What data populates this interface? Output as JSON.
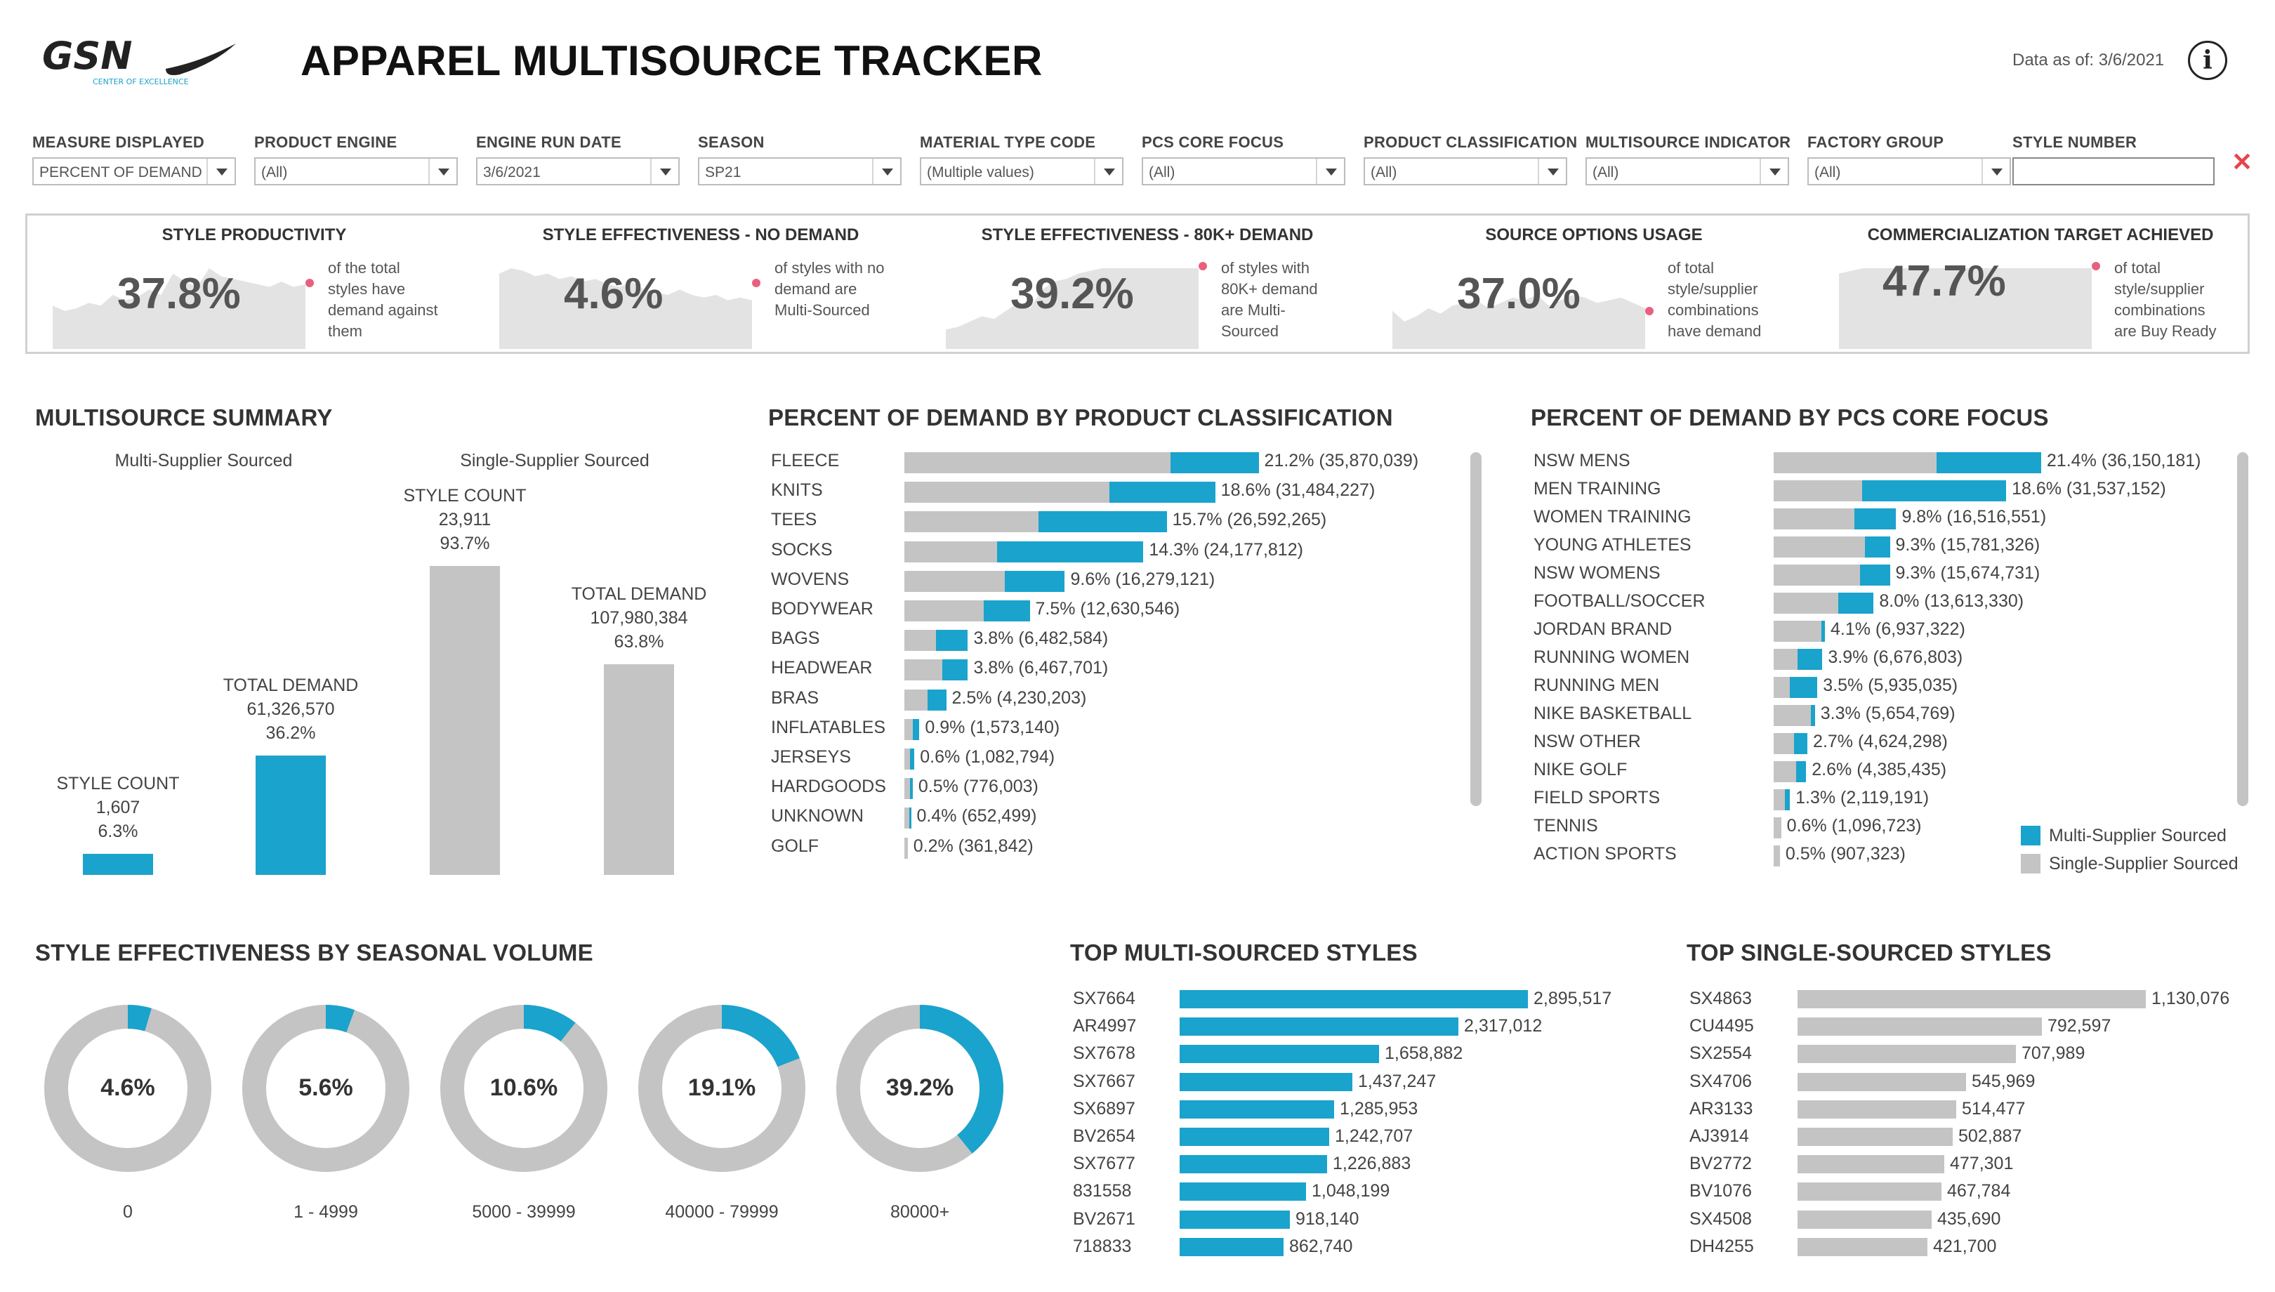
{
  "header": {
    "title": "APPAREL MULTISOURCE TRACKER",
    "logo_text": "GSN",
    "logo_subtext": "CENTER OF EXCELLENCE",
    "as_of": "Data as of: 3/6/2021"
  },
  "colors": {
    "multi": "#1aa3cc",
    "single": "#c4c4c4",
    "spark_dot": "#e9607f",
    "spark_fill": "#e3e3e3"
  },
  "filters": [
    {
      "label": "MEASURE DISPLAYED",
      "value": "PERCENT OF DEMAND"
    },
    {
      "label": "PRODUCT ENGINE",
      "value": "(All)"
    },
    {
      "label": "ENGINE RUN DATE",
      "value": "3/6/2021"
    },
    {
      "label": "SEASON",
      "value": "SP21"
    },
    {
      "label": "MATERIAL TYPE CODE",
      "value": "(Multiple values)"
    },
    {
      "label": "PCS CORE FOCUS",
      "value": "(All)"
    },
    {
      "label": "PRODUCT CLASSIFICATION",
      "value": "(All)"
    },
    {
      "label": "MULTISOURCE INDICATOR",
      "value": "(All)"
    },
    {
      "label": "FACTORY GROUP",
      "value": "(All)"
    }
  ],
  "style_number": {
    "label": "STYLE NUMBER",
    "value": ""
  },
  "kpis": [
    {
      "title": "STYLE PRODUCTIVITY",
      "value": "37.8%",
      "desc": "of the total styles have demand against them"
    },
    {
      "title": "STYLE EFFECTIVENESS - NO DEMAND",
      "value": "4.6%",
      "desc": "of styles with no demand are Multi-Sourced"
    },
    {
      "title": "STYLE EFFECTIVENESS - 80K+ DEMAND",
      "value": "39.2%",
      "desc": "of styles with 80K+ demand are Multi-Sourced"
    },
    {
      "title": "SOURCE OPTIONS USAGE",
      "value": "37.0%",
      "desc": "of total style/supplier combinations have demand"
    },
    {
      "title": "COMMERCIALIZATION TARGET ACHIEVED",
      "value": "47.7%",
      "desc": "of total style/supplier combinations are Buy Ready"
    }
  ],
  "multisource_summary": {
    "title": "MULTISOURCE SUMMARY",
    "groups": [
      "Multi-Supplier Sourced",
      "Single-Supplier Sourced"
    ],
    "bars": [
      {
        "group": "Multi-Supplier Sourced",
        "name": "STYLE COUNT",
        "amount": "1,607",
        "pct": "6.3%",
        "pct_value": 6.3
      },
      {
        "group": "Multi-Supplier Sourced",
        "name": "TOTAL DEMAND",
        "amount": "61,326,570",
        "pct": "36.2%",
        "pct_value": 36.2
      },
      {
        "group": "Single-Supplier Sourced",
        "name": "STYLE COUNT",
        "amount": "23,911",
        "pct": "93.7%",
        "pct_value": 93.7
      },
      {
        "group": "Single-Supplier Sourced",
        "name": "TOTAL DEMAND",
        "amount": "107,980,384",
        "pct": "63.8%",
        "pct_value": 63.8
      }
    ]
  },
  "product_classification": {
    "title": "PERCENT OF DEMAND BY PRODUCT CLASSIFICATION",
    "rows": [
      {
        "label": "FLEECE",
        "pct": 21.2,
        "multi_share": 0.25,
        "text": "21.2% (35,870,039)"
      },
      {
        "label": "KNITS",
        "pct": 18.6,
        "multi_share": 0.34,
        "text": "18.6% (31,484,227)"
      },
      {
        "label": "TEES",
        "pct": 15.7,
        "multi_share": 0.49,
        "text": "15.7% (26,592,265)"
      },
      {
        "label": "SOCKS",
        "pct": 14.3,
        "multi_share": 0.61,
        "text": "14.3% (24,177,812)"
      },
      {
        "label": "WOVENS",
        "pct": 9.6,
        "multi_share": 0.37,
        "text": "9.6% (16,279,121)"
      },
      {
        "label": "BODYWEAR",
        "pct": 7.5,
        "multi_share": 0.37,
        "text": "7.5% (12,630,546)"
      },
      {
        "label": "BAGS",
        "pct": 3.8,
        "multi_share": 0.5,
        "text": "3.8% (6,482,584)"
      },
      {
        "label": "HEADWEAR",
        "pct": 3.8,
        "multi_share": 0.4,
        "text": "3.8% (6,467,701)"
      },
      {
        "label": "BRAS",
        "pct": 2.5,
        "multi_share": 0.45,
        "text": "2.5% (4,230,203)"
      },
      {
        "label": "INFLATABLES",
        "pct": 0.9,
        "multi_share": 0.4,
        "text": "0.9% (1,573,140)"
      },
      {
        "label": "JERSEYS",
        "pct": 0.6,
        "multi_share": 0.4,
        "text": "0.6% (1,082,794)"
      },
      {
        "label": "HARDGOODS",
        "pct": 0.5,
        "multi_share": 0.3,
        "text": "0.5% (776,003)"
      },
      {
        "label": "UNKNOWN",
        "pct": 0.4,
        "multi_share": 0.3,
        "text": "0.4% (652,499)"
      },
      {
        "label": "GOLF",
        "pct": 0.2,
        "multi_share": 0.0,
        "text": "0.2% (361,842)"
      }
    ]
  },
  "pcs_core_focus": {
    "title": "PERCENT OF DEMAND BY PCS CORE FOCUS",
    "rows": [
      {
        "label": "NSW MENS",
        "pct": 21.4,
        "multi_share": 0.39,
        "text": "21.4% (36,150,181)"
      },
      {
        "label": "MEN TRAINING",
        "pct": 18.6,
        "multi_share": 0.62,
        "text": "18.6% (31,537,152)"
      },
      {
        "label": "WOMEN TRAINING",
        "pct": 9.8,
        "multi_share": 0.34,
        "text": "9.8% (16,516,551)"
      },
      {
        "label": "YOUNG ATHLETES",
        "pct": 9.3,
        "multi_share": 0.22,
        "text": "9.3% (15,781,326)"
      },
      {
        "label": "NSW WOMENS",
        "pct": 9.3,
        "multi_share": 0.26,
        "text": "9.3% (15,674,731)"
      },
      {
        "label": "FOOTBALL/SOCCER",
        "pct": 8.0,
        "multi_share": 0.35,
        "text": "8.0% (13,613,330)"
      },
      {
        "label": "JORDAN BRAND",
        "pct": 4.1,
        "multi_share": 0.07,
        "text": "4.1% (6,937,322)"
      },
      {
        "label": "RUNNING WOMEN",
        "pct": 3.9,
        "multi_share": 0.5,
        "text": "3.9% (6,676,803)"
      },
      {
        "label": "RUNNING MEN",
        "pct": 3.5,
        "multi_share": 0.62,
        "text": "3.5% (5,935,035)"
      },
      {
        "label": "NIKE BASKETBALL",
        "pct": 3.3,
        "multi_share": 0.1,
        "text": "3.3% (5,654,769)"
      },
      {
        "label": "NSW OTHER",
        "pct": 2.7,
        "multi_share": 0.4,
        "text": "2.7% (4,624,298)"
      },
      {
        "label": "NIKE GOLF",
        "pct": 2.6,
        "multi_share": 0.3,
        "text": "2.6% (4,385,435)"
      },
      {
        "label": "FIELD SPORTS",
        "pct": 1.3,
        "multi_share": 0.3,
        "text": "1.3% (2,119,191)"
      },
      {
        "label": "TENNIS",
        "pct": 0.6,
        "multi_share": 0.0,
        "text": "0.6% (1,096,723)"
      },
      {
        "label": "ACTION SPORTS",
        "pct": 0.5,
        "multi_share": 0.0,
        "text": "0.5% (907,323)"
      }
    ],
    "legend": [
      "Multi-Supplier Sourced",
      "Single-Supplier Sourced"
    ]
  },
  "seasonal_volume": {
    "title": "STYLE EFFECTIVENESS BY SEASONAL VOLUME",
    "donuts": [
      {
        "label": "0",
        "value_text": "4.6%",
        "value": 4.6
      },
      {
        "label": "1 - 4999",
        "value_text": "5.6%",
        "value": 5.6
      },
      {
        "label": "5000 - 39999",
        "value_text": "10.6%",
        "value": 10.6
      },
      {
        "label": "40000 - 79999",
        "value_text": "19.1%",
        "value": 19.1
      },
      {
        "label": "80000+",
        "value_text": "39.2%",
        "value": 39.2
      }
    ]
  },
  "top_multi": {
    "title": "TOP MULTI-SOURCED STYLES",
    "rows": [
      {
        "style": "SX7664",
        "value": 2895517,
        "text": "2,895,517"
      },
      {
        "style": "AR4997",
        "value": 2317012,
        "text": "2,317,012"
      },
      {
        "style": "SX7678",
        "value": 1658882,
        "text": "1,658,882"
      },
      {
        "style": "SX7667",
        "value": 1437247,
        "text": "1,437,247"
      },
      {
        "style": "SX6897",
        "value": 1285953,
        "text": "1,285,953"
      },
      {
        "style": "BV2654",
        "value": 1242707,
        "text": "1,242,707"
      },
      {
        "style": "SX7677",
        "value": 1226883,
        "text": "1,226,883"
      },
      {
        "style": "831558",
        "value": 1048199,
        "text": "1,048,199"
      },
      {
        "style": "BV2671",
        "value": 918140,
        "text": "918,140"
      },
      {
        "style": "718833",
        "value": 862740,
        "text": "862,740"
      }
    ]
  },
  "top_single": {
    "title": "TOP SINGLE-SOURCED STYLES",
    "rows": [
      {
        "style": "SX4863",
        "value": 1130076,
        "text": "1,130,076"
      },
      {
        "style": "CU4495",
        "value": 792597,
        "text": "792,597"
      },
      {
        "style": "SX2554",
        "value": 707989,
        "text": "707,989"
      },
      {
        "style": "SX4706",
        "value": 545969,
        "text": "545,969"
      },
      {
        "style": "AR3133",
        "value": 514477,
        "text": "514,477"
      },
      {
        "style": "AJ3914",
        "value": 502887,
        "text": "502,887"
      },
      {
        "style": "BV2772",
        "value": 477301,
        "text": "477,301"
      },
      {
        "style": "BV1076",
        "value": 467784,
        "text": "467,784"
      },
      {
        "style": "SX4508",
        "value": 435690,
        "text": "435,690"
      },
      {
        "style": "DH4255",
        "value": 421700,
        "text": "421,700"
      }
    ]
  }
}
